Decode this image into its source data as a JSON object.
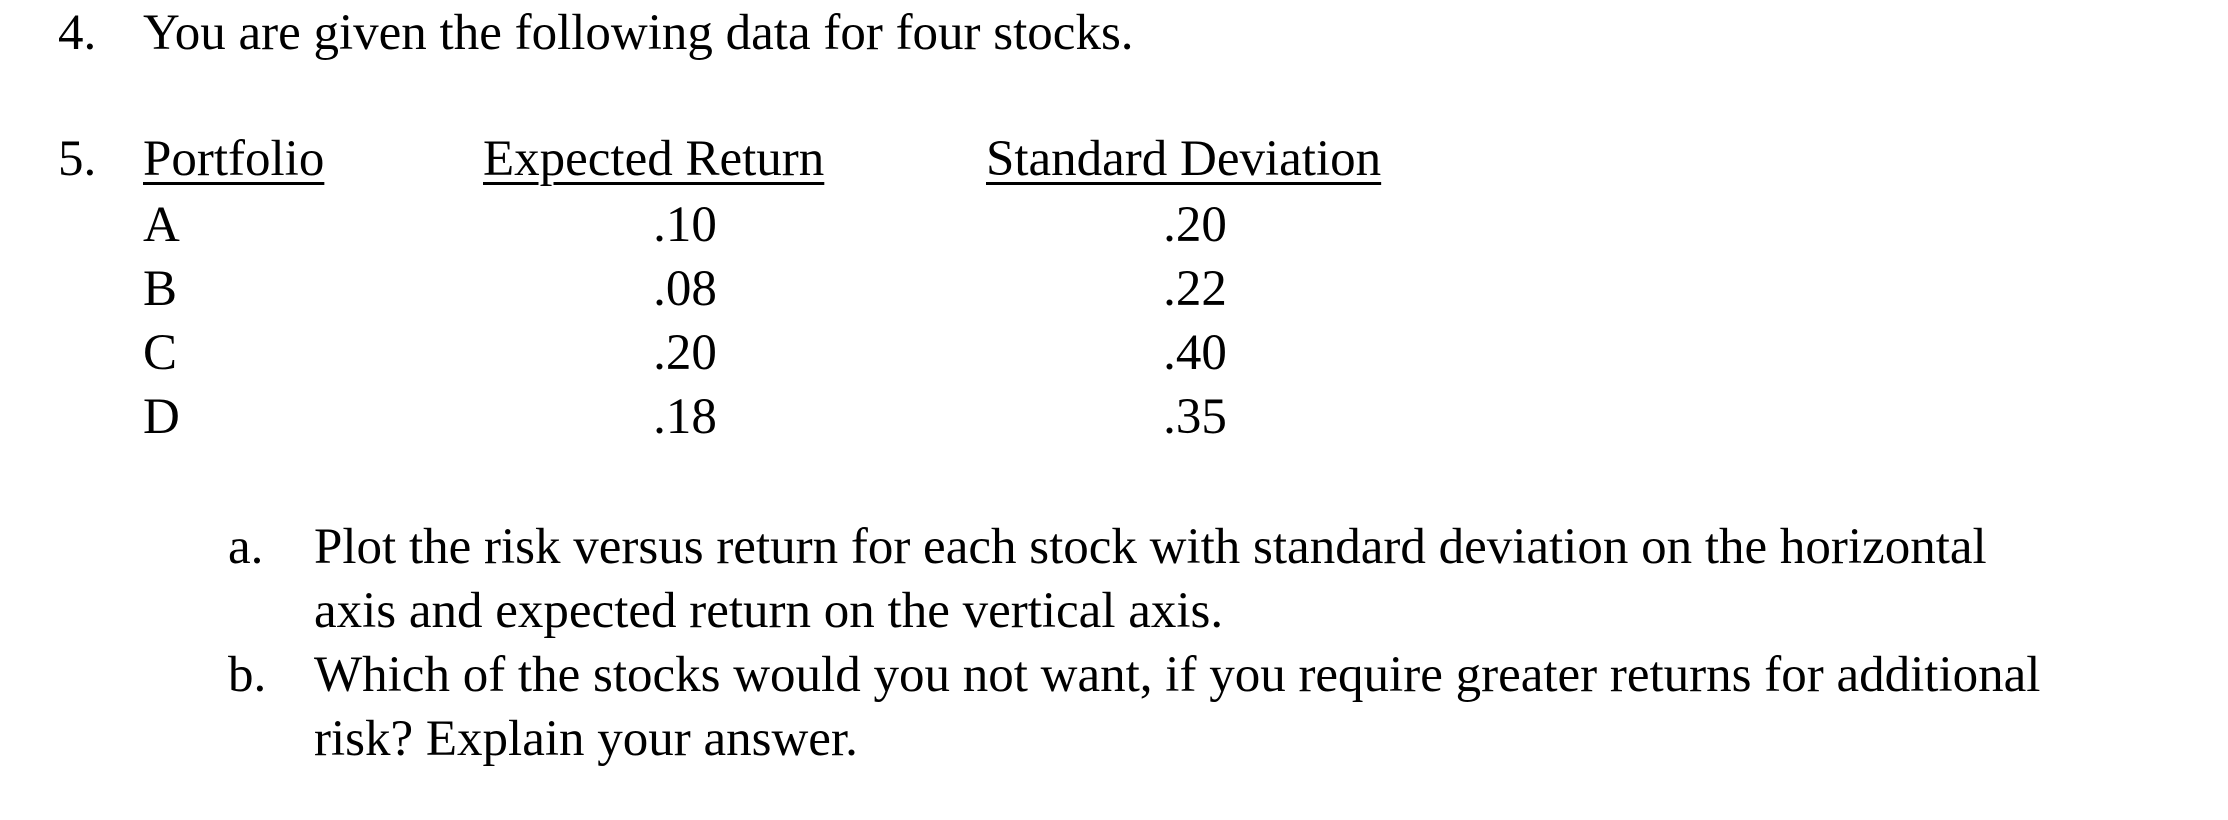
{
  "question4": {
    "number": "4.",
    "text": "You are given the following data for four stocks."
  },
  "question5": {
    "number": "5.",
    "table": {
      "headers": [
        "Portfolio",
        "Expected Return",
        "Standard Deviation"
      ],
      "rows": [
        {
          "portfolio": "A",
          "expected_return": ".10",
          "standard_deviation": ".20"
        },
        {
          "portfolio": "B",
          "expected_return": ".08",
          "standard_deviation": ".22"
        },
        {
          "portfolio": "C",
          "expected_return": ".20",
          "standard_deviation": ".40"
        },
        {
          "portfolio": "D",
          "expected_return": ".18",
          "standard_deviation": ".35"
        }
      ]
    },
    "parts": [
      {
        "label": "a.",
        "lines": [
          "Plot the risk versus return for each stock with standard deviation on the horizontal",
          "axis and expected return on the vertical axis."
        ]
      },
      {
        "label": "b.",
        "lines": [
          "Which of the stocks would you not want, if you require greater returns for additional",
          "risk? Explain your answer."
        ]
      }
    ]
  }
}
